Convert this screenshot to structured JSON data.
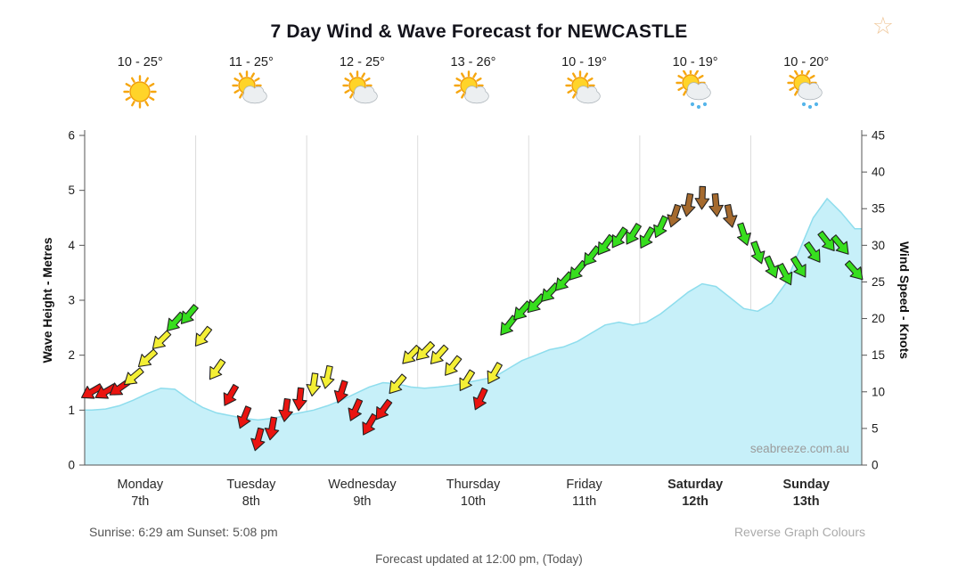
{
  "header": {
    "title": "7 Day Wind & Wave Forecast for NEWCASTLE",
    "star": "☆"
  },
  "days": [
    {
      "name": "Monday",
      "date": "7th",
      "temp": "10 - 25°",
      "icon": "sunny",
      "bold": false
    },
    {
      "name": "Tuesday",
      "date": "8th",
      "temp": "11 - 25°",
      "icon": "partly-cloudy",
      "bold": false
    },
    {
      "name": "Wednesday",
      "date": "9th",
      "temp": "12 - 25°",
      "icon": "partly-cloudy",
      "bold": false
    },
    {
      "name": "Thursday",
      "date": "10th",
      "temp": "13 - 26°",
      "icon": "partly-cloudy",
      "bold": false
    },
    {
      "name": "Friday",
      "date": "11th",
      "temp": "10 - 19°",
      "icon": "partly-cloudy",
      "bold": false
    },
    {
      "name": "Saturday",
      "date": "12th",
      "temp": "10 - 19°",
      "icon": "showers",
      "bold": true
    },
    {
      "name": "Sunday",
      "date": "13th",
      "temp": "10 - 20°",
      "icon": "showers",
      "bold": true
    }
  ],
  "chart_data": {
    "type": "area+wind_arrows",
    "title": "7 Day Wind & Wave Forecast for NEWCASTLE",
    "x_categories": [
      "Monday 7th",
      "Tuesday 8th",
      "Wednesday 9th",
      "Thursday 10th",
      "Friday 11th",
      "Saturday 12th",
      "Sunday 13th"
    ],
    "points_per_day": 8,
    "left_axis": {
      "label": "Wave Height - Metres",
      "min": 0,
      "max": 6,
      "step": 1
    },
    "right_axis": {
      "label": "Wind Speed - Knots",
      "min": 0,
      "max": 45,
      "step": 5
    },
    "grid": "vertical-day-separators",
    "legend_position": "none",
    "watermark": "seabreeze.com.au",
    "arrow_colors": {
      "red": "#ea1410",
      "yellow": "#f4ef35",
      "green": "#37de1e",
      "brown": "#a56a2e"
    },
    "series": [
      {
        "name": "Wave Height (metres)",
        "type": "area",
        "axis": "left",
        "fill": "#c7f0f9",
        "stroke": "#8edded",
        "values": [
          1.0,
          1.02,
          1.08,
          1.18,
          1.3,
          1.4,
          1.38,
          1.2,
          1.05,
          0.95,
          0.9,
          0.85,
          0.82,
          0.85,
          0.9,
          0.95,
          1.0,
          1.08,
          1.18,
          1.3,
          1.42,
          1.5,
          1.48,
          1.42,
          1.4,
          1.42,
          1.45,
          1.5,
          1.55,
          1.6,
          1.75,
          1.9,
          2.0,
          2.1,
          2.15,
          2.25,
          2.4,
          2.55,
          2.6,
          2.55,
          2.6,
          2.75,
          2.95,
          3.15,
          3.3,
          3.25,
          3.05,
          2.85,
          2.8,
          2.95,
          3.3,
          3.9,
          4.5,
          4.85,
          4.6,
          4.3
        ]
      },
      {
        "name": "Wind Speed (knots)",
        "type": "wind_arrows",
        "axis": "right",
        "knots": [
          10,
          10,
          10.5,
          12,
          14.5,
          17,
          19.5,
          20.5,
          17.5,
          13,
          9.5,
          6.5,
          3.5,
          5,
          7.5,
          9,
          11,
          12,
          10,
          7.5,
          5.5,
          7.5,
          11,
          15,
          15.5,
          15,
          13.5,
          11.5,
          9,
          12.5,
          19,
          21,
          22,
          23.5,
          25,
          26.5,
          28.5,
          30,
          31,
          31.5,
          31,
          32.5,
          34,
          35.5,
          36.5,
          35.5,
          34,
          31.5,
          29,
          27,
          26,
          27,
          29,
          30.5,
          30,
          26.5
        ],
        "colors": [
          "red",
          "red",
          "red",
          "yellow",
          "yellow",
          "yellow",
          "green",
          "green",
          "yellow",
          "yellow",
          "red",
          "red",
          "red",
          "red",
          "red",
          "red",
          "yellow",
          "yellow",
          "red",
          "red",
          "red",
          "red",
          "yellow",
          "yellow",
          "yellow",
          "yellow",
          "yellow",
          "yellow",
          "red",
          "yellow",
          "green",
          "green",
          "green",
          "green",
          "green",
          "green",
          "green",
          "green",
          "green",
          "green",
          "green",
          "green",
          "brown",
          "brown",
          "brown",
          "brown",
          "brown",
          "green",
          "green",
          "green",
          "green",
          "green",
          "green",
          "green",
          "green",
          "green"
        ],
        "directions_deg": [
          150,
          150,
          145,
          140,
          138,
          135,
          132,
          130,
          128,
          125,
          120,
          112,
          105,
          100,
          98,
          96,
          98,
          102,
          108,
          114,
          120,
          126,
          130,
          134,
          134,
          132,
          128,
          122,
          115,
          120,
          128,
          132,
          133,
          133,
          132,
          130,
          128,
          126,
          124,
          122,
          120,
          115,
          108,
          100,
          92,
          85,
          78,
          72,
          70,
          66,
          62,
          58,
          55,
          52,
          50,
          48
        ]
      }
    ]
  },
  "footer": {
    "sun_times": "Sunrise: 6:29 am  Sunset: 5:08 pm",
    "reverse_link": "Reverse Graph Colours",
    "updated": "Forecast updated at 12:00 pm, (Today)"
  }
}
